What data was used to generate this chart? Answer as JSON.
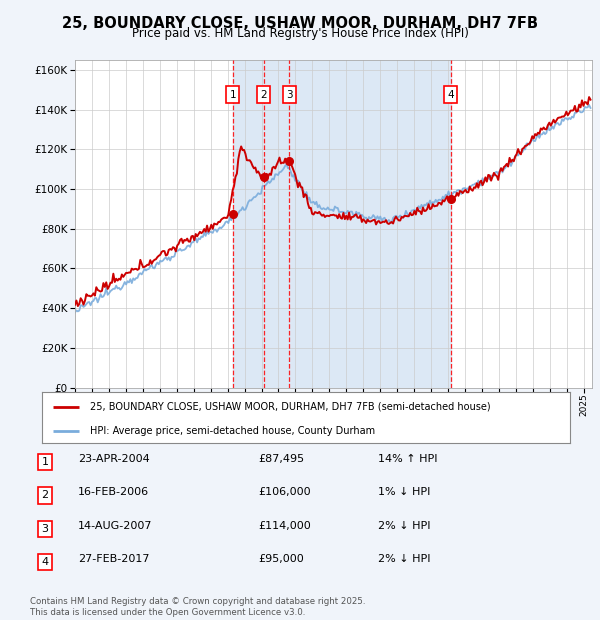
{
  "title": "25, BOUNDARY CLOSE, USHAW MOOR, DURHAM, DH7 7FB",
  "subtitle": "Price paid vs. HM Land Registry's House Price Index (HPI)",
  "background_color": "#f0f4fa",
  "plot_bg_color": "#ffffff",
  "shaded_region_color": "#dce8f5",
  "red_line_color": "#cc0000",
  "blue_line_color": "#7aacdc",
  "grid_color": "#cccccc",
  "ylim": [
    0,
    165000
  ],
  "ytick_step": 20000,
  "legend_line1": "25, BOUNDARY CLOSE, USHAW MOOR, DURHAM, DH7 7FB (semi-detached house)",
  "legend_line2": "HPI: Average price, semi-detached house, County Durham",
  "transactions": [
    {
      "num": 1,
      "date": "23-APR-2004",
      "price": 87495,
      "price_str": "£87,495",
      "hpi_diff": "14% ↑ HPI",
      "x_year": 2004.3
    },
    {
      "num": 2,
      "date": "16-FEB-2006",
      "price": 106000,
      "price_str": "£106,000",
      "hpi_diff": "1% ↓ HPI",
      "x_year": 2006.12
    },
    {
      "num": 3,
      "date": "14-AUG-2007",
      "price": 114000,
      "price_str": "£114,000",
      "hpi_diff": "2% ↓ HPI",
      "x_year": 2007.63
    },
    {
      "num": 4,
      "date": "27-FEB-2017",
      "price": 95000,
      "price_str": "£95,000",
      "hpi_diff": "2% ↓ HPI",
      "x_year": 2017.15
    }
  ],
  "shaded_x_start": 2004.3,
  "shaded_x_end": 2017.15,
  "footer": "Contains HM Land Registry data © Crown copyright and database right 2025.\nThis data is licensed under the Open Government Licence v3.0.",
  "xmin": 1995,
  "xmax": 2025.5
}
